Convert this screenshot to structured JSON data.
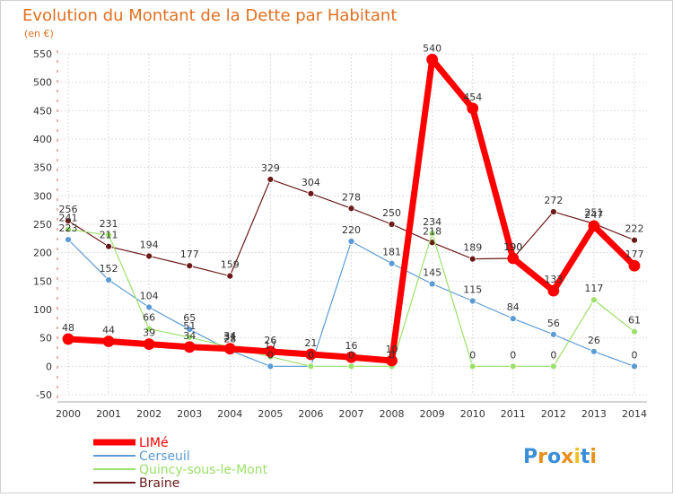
{
  "chart_data": {
    "type": "line",
    "title": "Evolution du Montant de la Dette par Habitant",
    "subtitle": "(en €)",
    "xlabel": "",
    "ylabel": "",
    "categories": [
      "2000",
      "2001",
      "2002",
      "2003",
      "2004",
      "2005",
      "2006",
      "2007",
      "2008",
      "2009",
      "2010",
      "2011",
      "2012",
      "2013",
      "2014"
    ],
    "ylim": [
      -50,
      550
    ],
    "yticks": [
      -50,
      0,
      50,
      100,
      150,
      200,
      250,
      300,
      350,
      400,
      450,
      500,
      550
    ],
    "grid": true,
    "legend_position": "bottom-left",
    "series": [
      {
        "name": "Braine",
        "color": "#6b1a1a",
        "width": 1.2,
        "values": [
          256,
          211,
          194,
          177,
          159,
          329,
          304,
          278,
          250,
          218,
          189,
          190,
          272,
          251,
          222
        ]
      },
      {
        "name": "Cerseuil",
        "color": "#5b9bd5",
        "width": 1.2,
        "values": [
          223,
          152,
          104,
          65,
          28,
          0,
          0,
          220,
          181,
          145,
          115,
          84,
          56,
          26,
          0
        ]
      },
      {
        "name": "Quincy-sous-le-Mont",
        "color": "#9be06a",
        "width": 1.2,
        "values": [
          241,
          231,
          66,
          51,
          34,
          17,
          0,
          0,
          0,
          234,
          0,
          0,
          0,
          117,
          61
        ]
      },
      {
        "name": "LIMé",
        "color": "#ff0000",
        "width": 7,
        "values": [
          48,
          44,
          39,
          34,
          31,
          26,
          21,
          16,
          10,
          540,
          454,
          190,
          133,
          247,
          177
        ]
      }
    ],
    "legend_order": [
      "LIMé",
      "Cerseuil",
      "Quincy-sous-le-Mont",
      "Braine"
    ]
  },
  "logo": {
    "text": "Proxiti"
  }
}
